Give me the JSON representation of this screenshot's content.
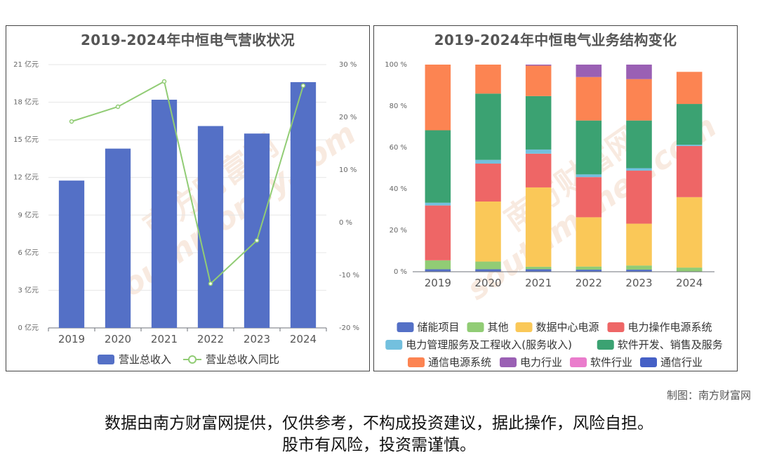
{
  "credit": "制图：南方财富网",
  "disclaimer_line1": "数据由南方财富网提供，仅供参考，不构成投资建议，据此操作，风险自担。",
  "disclaimer_line2": "股市有风险，投资需谨慎。",
  "watermark": [
    "南方财富网",
    "southmoney.com"
  ],
  "colors": {
    "revenue_bar": "#5470c6",
    "yoy_line": "#91cc75"
  },
  "chart_data": [
    {
      "type": "bar",
      "title": "2019-2024年中恒电气营收状况",
      "categories": [
        "2019",
        "2020",
        "2021",
        "2022",
        "2023",
        "2024"
      ],
      "series": [
        {
          "name": "营业总收入",
          "type": "bar",
          "axis": "left",
          "color": "#5470c6",
          "values": [
            11.75,
            14.3,
            18.2,
            16.1,
            15.5,
            19.6
          ]
        },
        {
          "name": "营业总收入同比",
          "type": "line",
          "axis": "right",
          "color": "#91cc75",
          "values": [
            19.2,
            22.0,
            26.8,
            -11.6,
            -3.4,
            26.0
          ]
        }
      ],
      "ylim": [
        0,
        21
      ],
      "yticks": [
        0,
        3,
        6,
        9,
        12,
        15,
        18,
        21
      ],
      "ytick_labels": [
        "0 亿元",
        "3 亿元",
        "6 亿元",
        "9 亿元",
        "12 亿元",
        "15 亿元",
        "18 亿元",
        "21 亿元"
      ],
      "y2lim": [
        -20,
        30
      ],
      "y2ticks": [
        -20,
        -10,
        0,
        10,
        20,
        30
      ],
      "y2tick_labels": [
        "-20 %",
        "-10 %",
        "0 %",
        "10 %",
        "20 %",
        "30 %"
      ],
      "grid": true,
      "legend": "bottom"
    },
    {
      "type": "bar",
      "stacked": true,
      "title": "2019-2024年中恒电气业务结构变化",
      "categories": [
        "2019",
        "2020",
        "2021",
        "2022",
        "2023",
        "2024"
      ],
      "series": [
        {
          "name": "储能项目",
          "color": "#5470c6",
          "values": [
            1.2,
            1.2,
            1.2,
            1.0,
            1.0,
            0.0
          ]
        },
        {
          "name": "其他",
          "color": "#91cc75",
          "values": [
            4.3,
            3.7,
            1.2,
            1.5,
            2.0,
            2.0
          ]
        },
        {
          "name": "数据中心电源",
          "color": "#fac858",
          "values": [
            0.0,
            29.0,
            38.3,
            23.8,
            20.2,
            34.0
          ]
        },
        {
          "name": "电力操作电源系统",
          "color": "#ee6666",
          "values": [
            26.5,
            18.3,
            16.3,
            19.4,
            25.6,
            24.7
          ]
        },
        {
          "name": "电力管理服务及工程收入(服务收入)",
          "color": "#73c0de",
          "values": [
            1.3,
            1.8,
            2.0,
            1.3,
            1.2,
            0.6
          ]
        },
        {
          "name": "软件开发、销售及服务",
          "color": "#3ba272",
          "values": [
            35.0,
            32.0,
            25.8,
            26.0,
            23.0,
            19.7
          ]
        },
        {
          "name": "通信电源系统",
          "color": "#fc8452",
          "values": [
            31.7,
            14.0,
            14.7,
            21.0,
            20.0,
            15.5
          ]
        },
        {
          "name": "电力行业",
          "color": "#9a60b4",
          "values": [
            0.0,
            0.0,
            0.5,
            6.0,
            7.0,
            0.0
          ]
        },
        {
          "name": "软件行业",
          "color": "#ea7ccc",
          "values": [
            0.0,
            0.0,
            0.0,
            0.0,
            0.0,
            0.0
          ]
        },
        {
          "name": "通信行业",
          "color": "#4560c6",
          "values": [
            0.0,
            0.0,
            0.0,
            0.0,
            0.0,
            0.0
          ]
        }
      ],
      "ylim": [
        0,
        100
      ],
      "yticks": [
        0,
        20,
        40,
        60,
        80,
        100
      ],
      "ytick_labels": [
        "0 %",
        "20 %",
        "40 %",
        "60 %",
        "80 %",
        "100 %"
      ],
      "grid": false,
      "legend": "bottom"
    }
  ]
}
